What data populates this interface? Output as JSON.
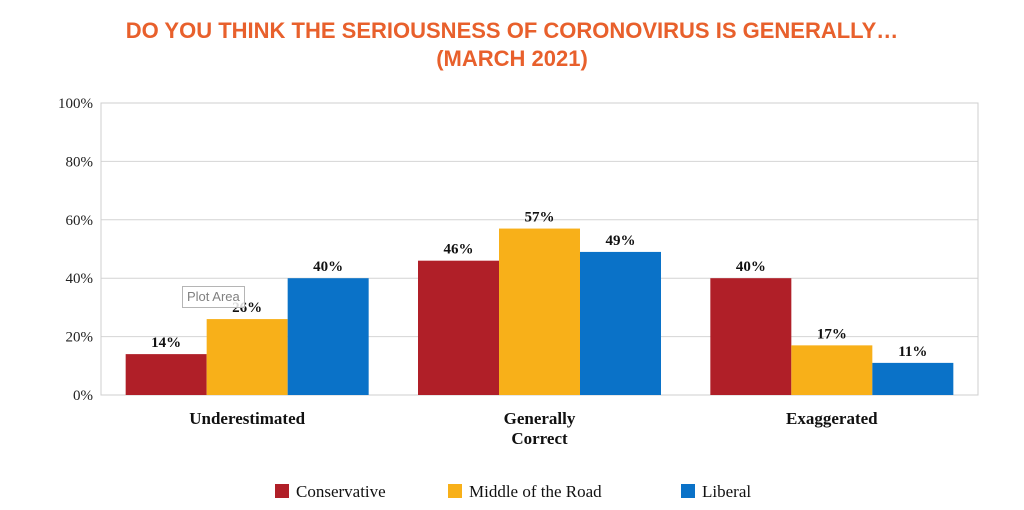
{
  "title_line1": "DO YOU THINK THE SERIOUSNESS OF CORONOVIRUS IS GENERALLY…",
  "title_line2": "(MARCH 2021)",
  "tooltip": "Plot Area",
  "colors": {
    "title": "#e8602c",
    "conservative": "#b01f28",
    "middle": "#f8b019",
    "liberal": "#0a72c8"
  },
  "chart_data": {
    "type": "bar",
    "title": "DO YOU THINK THE SERIOUSNESS OF CORONOVIRUS IS GENERALLY… (MARCH 2021)",
    "categories": [
      "Underestimated",
      "Generally Correct",
      "Exaggerated"
    ],
    "series": [
      {
        "name": "Conservative",
        "values": [
          14,
          46,
          40
        ],
        "labels": [
          "14%",
          "46%",
          "40%"
        ]
      },
      {
        "name": "Middle of the Road",
        "values": [
          26,
          57,
          17
        ],
        "labels": [
          "26%",
          "57%",
          "17%"
        ]
      },
      {
        "name": "Liberal",
        "values": [
          40,
          49,
          11
        ],
        "labels": [
          "40%",
          "49%",
          "11%"
        ]
      }
    ],
    "ylim": [
      0,
      100
    ],
    "yticks": [
      "0%",
      "20%",
      "40%",
      "60%",
      "80%",
      "100%"
    ],
    "grid": true,
    "legend": "bottom"
  }
}
